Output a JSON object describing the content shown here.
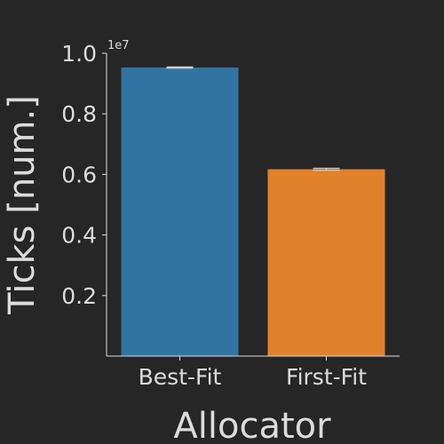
{
  "chart_data": {
    "type": "bar",
    "categories": [
      "Best-Fit",
      "First-Fit"
    ],
    "values": [
      0.953,
      0.617
    ],
    "errors": [
      0.002,
      0.003
    ],
    "value_multiplier_label": "1e7",
    "xlabel": "Allocator",
    "ylabel": "Ticks [num.]",
    "ylim": [
      0.0,
      1.0
    ],
    "yticks": [
      0.2,
      0.4,
      0.6,
      0.8,
      1.0
    ],
    "ytick_labels": [
      "0.2",
      "0.4",
      "0.6",
      "0.8",
      "1.0"
    ],
    "grid": false,
    "colors": [
      "#3274a1",
      "#e1812c"
    ],
    "error_bar_color": "#cccccc",
    "axis_color": "#dcdcdc",
    "background": "#262626"
  }
}
